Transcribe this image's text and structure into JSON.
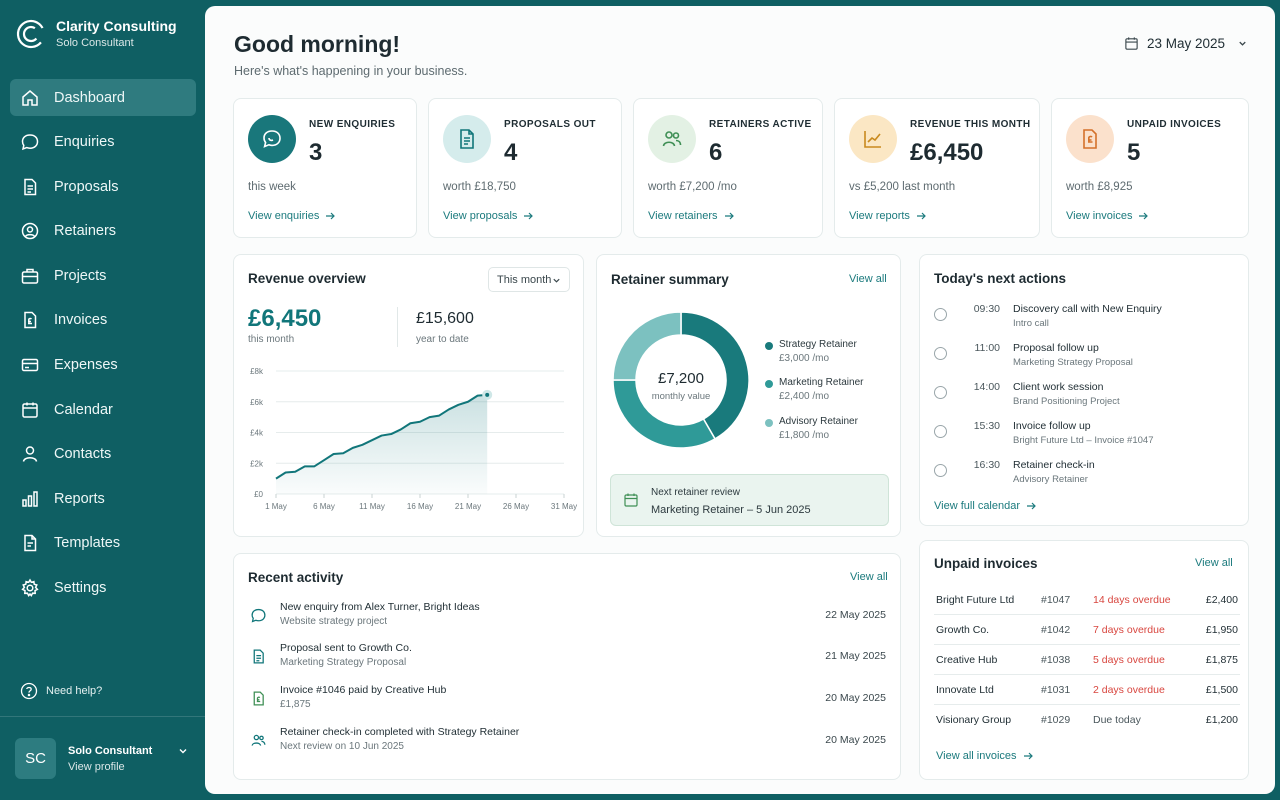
{
  "brand": {
    "name": "Clarity Consulting",
    "subtitle": "Solo Consultant"
  },
  "nav": [
    {
      "label": "Dashboard",
      "icon": "home-icon",
      "active": true
    },
    {
      "label": "Enquiries",
      "icon": "chat-bubble-icon"
    },
    {
      "label": "Proposals",
      "icon": "document-icon"
    },
    {
      "label": "Retainers",
      "icon": "user-circle-icon"
    },
    {
      "label": "Projects",
      "icon": "briefcase-icon"
    },
    {
      "label": "Invoices",
      "icon": "invoice-icon"
    },
    {
      "label": "Expenses",
      "icon": "card-icon"
    },
    {
      "label": "Calendar",
      "icon": "calendar-icon"
    },
    {
      "label": "Contacts",
      "icon": "person-icon"
    },
    {
      "label": "Reports",
      "icon": "bar-chart-icon"
    },
    {
      "label": "Templates",
      "icon": "template-icon"
    },
    {
      "label": "Settings",
      "icon": "gear-icon"
    }
  ],
  "help": {
    "label": "Need help?"
  },
  "user": {
    "initials": "SC",
    "name": "Solo Consultant",
    "link": "View profile"
  },
  "header": {
    "greeting": "Good morning!",
    "subtitle": "Here's what's happening in your business.",
    "date": "23 May 2025"
  },
  "stats": [
    {
      "label": "NEW ENQUIRIES",
      "value": "3",
      "sub": "this week",
      "link": "View enquiries",
      "icon": "chat-bubble-icon",
      "bg": "#19777b",
      "fg": "#ffffff"
    },
    {
      "label": "PROPOSALS OUT",
      "value": "4",
      "sub": "worth £18,750",
      "link": "View proposals",
      "icon": "document-icon",
      "bg": "#d5ecec",
      "fg": "#11767a"
    },
    {
      "label": "RETAINERS ACTIVE",
      "value": "6",
      "sub": "worth £7,200 /mo",
      "link": "View retainers",
      "icon": "people-icon",
      "bg": "#e3f1e4",
      "fg": "#3f8f55"
    },
    {
      "label": "REVENUE THIS MONTH",
      "value": "£6,450",
      "sub": "vs £5,200 last month",
      "link": "View reports",
      "icon": "trend-chart-icon",
      "bg": "#fbe7c4",
      "fg": "#c98a1e"
    },
    {
      "label": "UNPAID INVOICES",
      "value": "5",
      "sub": "worth £8,925",
      "link": "View invoices",
      "icon": "invoice-pound-icon",
      "bg": "#fbe1cc",
      "fg": "#d4712a"
    }
  ],
  "revenue": {
    "title": "Revenue overview",
    "period": "This month",
    "amount": "£6,450",
    "amount_label": "this month",
    "ytd": "£15,600",
    "ytd_label": "year to date"
  },
  "chart_data": {
    "type": "area",
    "x": [
      "1 May",
      "2 May",
      "3 May",
      "4 May",
      "5 May",
      "6 May",
      "7 May",
      "8 May",
      "9 May",
      "10 May",
      "11 May",
      "12 May",
      "13 May",
      "14 May",
      "15 May",
      "16 May",
      "17 May",
      "18 May",
      "19 May",
      "20 May",
      "21 May",
      "22 May",
      "23 May"
    ],
    "x_ticks": [
      "1 May",
      "6 May",
      "11 May",
      "16 May",
      "21 May",
      "26 May",
      "31 May"
    ],
    "y_ticks": [
      "£0",
      "£2k",
      "£4k",
      "£6k",
      "£8k"
    ],
    "values": [
      1000,
      1400,
      1450,
      1800,
      1800,
      2200,
      2600,
      2650,
      3000,
      3200,
      3500,
      3800,
      3900,
      4200,
      4600,
      4700,
      5000,
      5100,
      5500,
      5800,
      6000,
      6400,
      6450
    ],
    "xlim": [
      1,
      31
    ],
    "ylim": [
      0,
      8000
    ],
    "color": "#11767a"
  },
  "retainer": {
    "title": "Retainer summary",
    "view_all": "View all",
    "center_value": "£7,200",
    "center_label": "monthly value",
    "slices": [
      {
        "name": "Strategy Retainer",
        "amount": "£3,000 /mo",
        "value": 3000,
        "color": "#197a7c"
      },
      {
        "name": "Marketing Retainer",
        "amount": "£2,400 /mo",
        "value": 2400,
        "color": "#2f9a98"
      },
      {
        "name": "Advisory Retainer",
        "amount": "£1,800 /mo",
        "value": 1800,
        "color": "#7cc1c0"
      }
    ],
    "review_title": "Next retainer review",
    "review_detail": "Marketing Retainer – 5 Jun 2025"
  },
  "actions": {
    "title": "Today's next actions",
    "link": "View full calendar",
    "items": [
      {
        "time": "09:30",
        "title": "Discovery call with New Enquiry",
        "sub": "Intro call"
      },
      {
        "time": "11:00",
        "title": "Proposal follow up",
        "sub": "Marketing Strategy Proposal"
      },
      {
        "time": "14:00",
        "title": "Client work session",
        "sub": "Brand Positioning Project"
      },
      {
        "time": "15:30",
        "title": "Invoice follow up",
        "sub": "Bright Future Ltd – Invoice #1047"
      },
      {
        "time": "16:30",
        "title": "Retainer check-in",
        "sub": "Advisory Retainer"
      }
    ]
  },
  "activity": {
    "title": "Recent activity",
    "view_all": "View all",
    "items": [
      {
        "icon": "chat-bubble-icon",
        "title": "New enquiry from Alex Turner, Bright Ideas",
        "sub": "Website strategy project",
        "date": "22 May 2025"
      },
      {
        "icon": "document-icon",
        "title": "Proposal sent to Growth Co.",
        "sub": "Marketing Strategy Proposal",
        "date": "21 May 2025"
      },
      {
        "icon": "invoice-pound-icon",
        "title": "Invoice #1046 paid by Creative Hub",
        "sub": "£1,875",
        "date": "20 May 2025"
      },
      {
        "icon": "people-icon",
        "title": "Retainer check-in completed with Strategy Retainer",
        "sub": "Next review on 10 Jun 2025",
        "date": "20 May 2025"
      }
    ]
  },
  "invoices": {
    "title": "Unpaid invoices",
    "view_all": "View all",
    "link": "View all invoices",
    "rows": [
      {
        "client": "Bright Future Ltd",
        "number": "#1047",
        "status": "14 days overdue",
        "overdue": true,
        "amount": "£2,400"
      },
      {
        "client": "Growth Co.",
        "number": "#1042",
        "status": "7 days overdue",
        "overdue": true,
        "amount": "£1,950"
      },
      {
        "client": "Creative Hub",
        "number": "#1038",
        "status": "5 days overdue",
        "overdue": true,
        "amount": "£1,875"
      },
      {
        "client": "Innovate Ltd",
        "number": "#1031",
        "status": "2 days overdue",
        "overdue": true,
        "amount": "£1,500"
      },
      {
        "client": "Visionary Group",
        "number": "#1029",
        "status": "Due today",
        "overdue": false,
        "amount": "£1,200"
      }
    ]
  },
  "colors": {
    "primary": "#0f5f63",
    "accent": "#11767a",
    "overdue": "#d8463f"
  }
}
